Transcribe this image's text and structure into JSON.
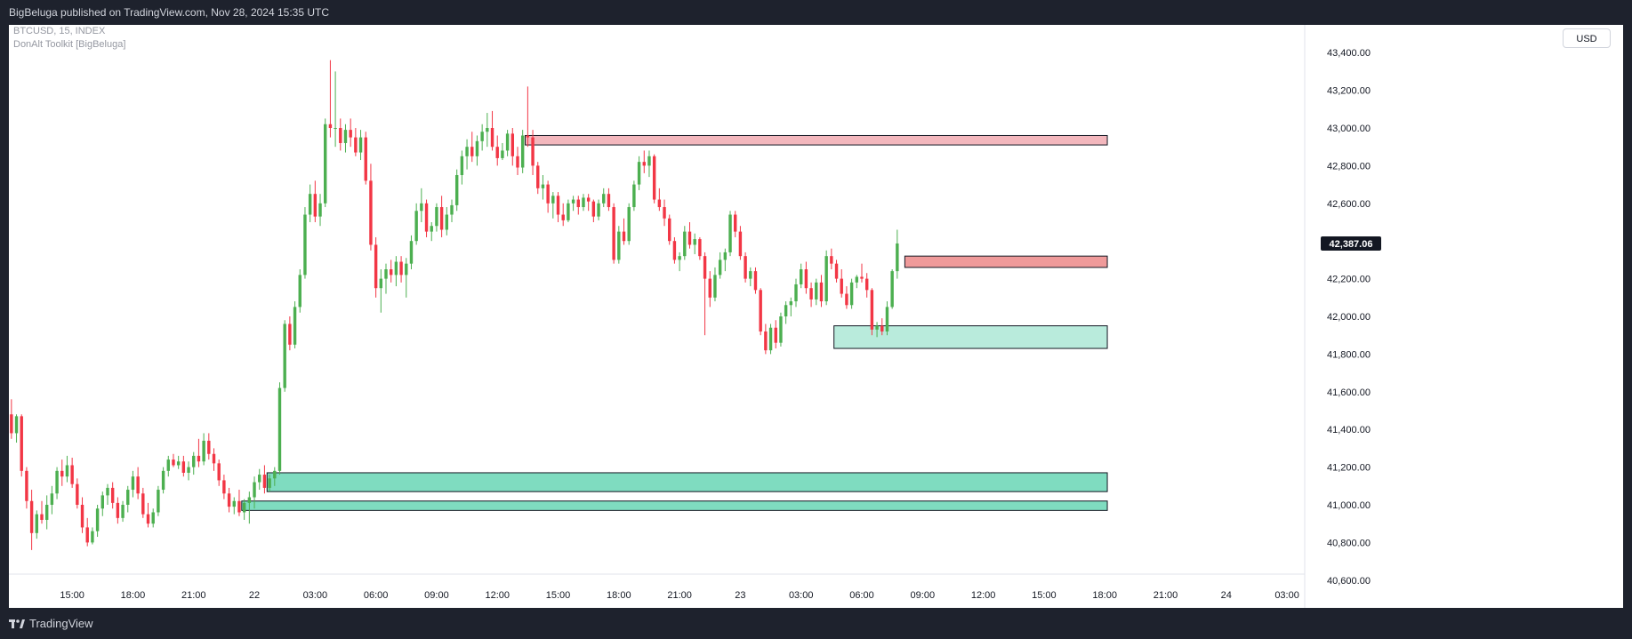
{
  "header": {
    "published_text": "BigBeluga published on TradingView.com, Nov 28, 2024 15:35 UTC"
  },
  "legend": {
    "symbol_line": "BTCUSD, 15, INDEX",
    "indicator_line": "DonAlt Toolkit [BigBeluga]"
  },
  "currency_button": {
    "label": "USD"
  },
  "footer": {
    "brand": "TradingView"
  },
  "colors": {
    "up": "#4caf50",
    "down": "#f23645",
    "supply_fill": "#f3b7bd",
    "supply_fill_strong": "#ef9a9a",
    "demand_fill": "#7fdcc0",
    "demand_fill_light": "#b9ebdc",
    "price_label_bg": "#131722"
  },
  "chart_data": {
    "type": "candlestick",
    "symbol": "BTCUSD",
    "interval": "15",
    "ylim": [
      40500,
      43500
    ],
    "y_ticks": [
      "43,400.00",
      "43,200.00",
      "43,000.00",
      "42,800.00",
      "42,600.00",
      "42,400.00",
      "42,200.00",
      "42,000.00",
      "41,800.00",
      "41,600.00",
      "41,400.00",
      "41,200.00",
      "41,000.00",
      "40,800.00",
      "40,600.00"
    ],
    "y_tick_values": [
      43400,
      43200,
      43000,
      42800,
      42600,
      42400,
      42200,
      42000,
      41800,
      41600,
      41400,
      41200,
      41000,
      40800,
      40600
    ],
    "x_ticks": [
      "15:00",
      "18:00",
      "21:00",
      "22",
      "03:00",
      "06:00",
      "09:00",
      "12:00",
      "15:00",
      "18:00",
      "21:00",
      "23",
      "03:00",
      "06:00",
      "09:00",
      "12:00",
      "15:00",
      "18:00",
      "21:00",
      "24",
      "03:00"
    ],
    "x_tick_bars": [
      12,
      24,
      36,
      48,
      60,
      72,
      84,
      96,
      108,
      120,
      132,
      144,
      156,
      168,
      180,
      192,
      204,
      216,
      228,
      240,
      252
    ],
    "bar_count_visible": 256,
    "last_price": {
      "value": 42387.06,
      "label": "42,387.06"
    },
    "zones": [
      {
        "kind": "supply",
        "top": 42960,
        "bottom": 42910,
        "start_bar": 102,
        "end_bar": 216
      },
      {
        "kind": "supply",
        "top": 42320,
        "bottom": 42260,
        "start_bar": 177,
        "end_bar": 216
      },
      {
        "kind": "demand",
        "top": 41950,
        "bottom": 41830,
        "start_bar": 163,
        "end_bar": 216
      },
      {
        "kind": "demand",
        "top": 41170,
        "bottom": 41070,
        "start_bar": 51,
        "end_bar": 216
      },
      {
        "kind": "demand",
        "top": 41020,
        "bottom": 40970,
        "start_bar": 46,
        "end_bar": 216
      }
    ],
    "ohlc": [
      [
        41480,
        41560,
        41350,
        41380
      ],
      [
        41380,
        41480,
        41330,
        41470
      ],
      [
        41470,
        41480,
        41150,
        41180
      ],
      [
        41180,
        41200,
        40980,
        41020
      ],
      [
        41020,
        41080,
        40760,
        40850
      ],
      [
        40850,
        40970,
        40820,
        40950
      ],
      [
        40950,
        41020,
        40900,
        40920
      ],
      [
        40920,
        41050,
        40870,
        41000
      ],
      [
        41000,
        41100,
        40950,
        41060
      ],
      [
        41060,
        41200,
        41030,
        41180
      ],
      [
        41180,
        41240,
        41100,
        41150
      ],
      [
        41150,
        41260,
        41120,
        41210
      ],
      [
        41210,
        41250,
        41090,
        41110
      ],
      [
        41110,
        41140,
        40980,
        41000
      ],
      [
        41000,
        41040,
        40850,
        40880
      ],
      [
        40880,
        40930,
        40780,
        40800
      ],
      [
        40800,
        40880,
        40790,
        40860
      ],
      [
        40860,
        41000,
        40830,
        40980
      ],
      [
        40980,
        41070,
        40940,
        41050
      ],
      [
        41050,
        41110,
        41000,
        41090
      ],
      [
        41090,
        41120,
        40980,
        41010
      ],
      [
        41010,
        41040,
        40900,
        40930
      ],
      [
        40930,
        41020,
        40910,
        41000
      ],
      [
        41000,
        41100,
        40960,
        41080
      ],
      [
        41080,
        41180,
        41040,
        41150
      ],
      [
        41150,
        41200,
        41030,
        41060
      ],
      [
        41060,
        41090,
        40930,
        40950
      ],
      [
        40950,
        41010,
        40880,
        40900
      ],
      [
        40900,
        40980,
        40880,
        40960
      ],
      [
        40960,
        41100,
        40940,
        41080
      ],
      [
        41080,
        41200,
        41060,
        41180
      ],
      [
        41180,
        41260,
        41150,
        41240
      ],
      [
        41240,
        41270,
        41200,
        41210
      ],
      [
        41210,
        41260,
        41190,
        41230
      ],
      [
        41230,
        41260,
        41150,
        41170
      ],
      [
        41170,
        41230,
        41130,
        41200
      ],
      [
        41200,
        41280,
        41160,
        41260
      ],
      [
        41260,
        41350,
        41200,
        41230
      ],
      [
        41230,
        41380,
        41210,
        41340
      ],
      [
        41340,
        41380,
        41240,
        41270
      ],
      [
        41270,
        41300,
        41180,
        41220
      ],
      [
        41220,
        41240,
        41100,
        41130
      ],
      [
        41130,
        41160,
        41030,
        41060
      ],
      [
        41060,
        41090,
        40960,
        40990
      ],
      [
        40990,
        41040,
        40950,
        41020
      ],
      [
        41020,
        41080,
        40940,
        40960
      ],
      [
        40960,
        41030,
        40920,
        41010
      ],
      [
        41010,
        41070,
        40900,
        41040
      ],
      [
        41040,
        41150,
        40980,
        41120
      ],
      [
        41120,
        41190,
        41080,
        41160
      ],
      [
        41160,
        41210,
        41060,
        41090
      ],
      [
        41090,
        41160,
        41070,
        41140
      ],
      [
        41140,
        41200,
        41100,
        41180
      ],
      [
        41180,
        41650,
        41160,
        41620
      ],
      [
        41620,
        41980,
        41600,
        41960
      ],
      [
        41960,
        42000,
        41820,
        41850
      ],
      [
        41850,
        42080,
        41830,
        42050
      ],
      [
        42050,
        42250,
        42020,
        42220
      ],
      [
        42220,
        42580,
        42200,
        42540
      ],
      [
        42540,
        42700,
        42500,
        42650
      ],
      [
        42650,
        42720,
        42500,
        42530
      ],
      [
        42530,
        42650,
        42480,
        42600
      ],
      [
        42600,
        43050,
        42580,
        43020
      ],
      [
        43020,
        43360,
        42950,
        43000
      ],
      [
        43000,
        43300,
        42900,
        43000
      ],
      [
        43000,
        43050,
        42880,
        42920
      ],
      [
        42920,
        43020,
        42870,
        42990
      ],
      [
        42990,
        43050,
        42900,
        42950
      ],
      [
        42950,
        43000,
        42850,
        42870
      ],
      [
        42870,
        42990,
        42830,
        42950
      ],
      [
        42950,
        42980,
        42700,
        42720
      ],
      [
        42720,
        42810,
        42350,
        42380
      ],
      [
        42380,
        42420,
        42100,
        42150
      ],
      [
        42150,
        42250,
        42020,
        42200
      ],
      [
        42200,
        42280,
        42120,
        42250
      ],
      [
        42250,
        42300,
        42180,
        42220
      ],
      [
        42220,
        42320,
        42160,
        42290
      ],
      [
        42290,
        42320,
        42180,
        42220
      ],
      [
        42220,
        42310,
        42100,
        42280
      ],
      [
        42280,
        42430,
        42250,
        42400
      ],
      [
        42400,
        42600,
        42380,
        42560
      ],
      [
        42560,
        42680,
        42500,
        42600
      ],
      [
        42600,
        42620,
        42420,
        42450
      ],
      [
        42450,
        42500,
        42400,
        42480
      ],
      [
        42480,
        42600,
        42450,
        42580
      ],
      [
        42580,
        42640,
        42420,
        42460
      ],
      [
        42460,
        42580,
        42430,
        42540
      ],
      [
        42540,
        42620,
        42500,
        42590
      ],
      [
        42590,
        42780,
        42560,
        42750
      ],
      [
        42750,
        42880,
        42700,
        42850
      ],
      [
        42850,
        42940,
        42780,
        42900
      ],
      [
        42900,
        42980,
        42820,
        42850
      ],
      [
        42850,
        42960,
        42800,
        42930
      ],
      [
        42930,
        43020,
        42880,
        42980
      ],
      [
        42980,
        43080,
        42900,
        43000
      ],
      [
        43000,
        43090,
        42880,
        42900
      ],
      [
        42900,
        42960,
        42800,
        42840
      ],
      [
        42840,
        42920,
        42830,
        42880
      ],
      [
        42880,
        42990,
        42850,
        42970
      ],
      [
        42970,
        43000,
        42800,
        42850
      ],
      [
        42850,
        42900,
        42750,
        42790
      ],
      [
        42790,
        42990,
        42760,
        42960
      ],
      [
        42960,
        43220,
        42900,
        42950
      ],
      [
        42950,
        42990,
        42750,
        42800
      ],
      [
        42800,
        42820,
        42650,
        42680
      ],
      [
        42680,
        42750,
        42620,
        42700
      ],
      [
        42700,
        42720,
        42550,
        42600
      ],
      [
        42600,
        42660,
        42520,
        42640
      ],
      [
        42640,
        42660,
        42500,
        42540
      ],
      [
        42540,
        42600,
        42480,
        42510
      ],
      [
        42510,
        42620,
        42500,
        42600
      ],
      [
        42600,
        42640,
        42560,
        42620
      ],
      [
        42620,
        42640,
        42540,
        42580
      ],
      [
        42580,
        42650,
        42560,
        42630
      ],
      [
        42630,
        42650,
        42560,
        42610
      ],
      [
        42610,
        42620,
        42500,
        42530
      ],
      [
        42530,
        42620,
        42510,
        42600
      ],
      [
        42600,
        42680,
        42580,
        42650
      ],
      [
        42650,
        42680,
        42560,
        42580
      ],
      [
        42580,
        42600,
        42280,
        42300
      ],
      [
        42300,
        42480,
        42280,
        42450
      ],
      [
        42450,
        42520,
        42380,
        42400
      ],
      [
        42400,
        42600,
        42380,
        42580
      ],
      [
        42580,
        42720,
        42560,
        42700
      ],
      [
        42700,
        42850,
        42670,
        42820
      ],
      [
        42820,
        42880,
        42760,
        42800
      ],
      [
        42800,
        42880,
        42740,
        42850
      ],
      [
        42850,
        42860,
        42600,
        42620
      ],
      [
        42620,
        42680,
        42560,
        42580
      ],
      [
        42580,
        42620,
        42480,
        42520
      ],
      [
        42520,
        42540,
        42380,
        42400
      ],
      [
        42400,
        42420,
        42280,
        42300
      ],
      [
        42300,
        42340,
        42240,
        42320
      ],
      [
        42320,
        42480,
        42300,
        42450
      ],
      [
        42450,
        42500,
        42360,
        42380
      ],
      [
        42380,
        42440,
        42330,
        42410
      ],
      [
        42410,
        42420,
        42300,
        42320
      ],
      [
        42320,
        42340,
        41900,
        42200
      ],
      [
        42200,
        42240,
        42050,
        42100
      ],
      [
        42100,
        42260,
        42080,
        42220
      ],
      [
        42220,
        42340,
        42200,
        42300
      ],
      [
        42300,
        42360,
        42240,
        42340
      ],
      [
        42340,
        42560,
        42320,
        42540
      ],
      [
        42540,
        42560,
        42420,
        42450
      ],
      [
        42450,
        42480,
        42300,
        42320
      ],
      [
        42320,
        42340,
        42180,
        42200
      ],
      [
        42200,
        42260,
        42160,
        42240
      ],
      [
        42240,
        42260,
        42120,
        42140
      ],
      [
        42140,
        42150,
        41900,
        41920
      ],
      [
        41920,
        41960,
        41800,
        41820
      ],
      [
        41820,
        41960,
        41800,
        41940
      ],
      [
        41940,
        41980,
        41830,
        41860
      ],
      [
        41860,
        42020,
        41840,
        42000
      ],
      [
        42000,
        42080,
        41960,
        42060
      ],
      [
        42060,
        42100,
        42000,
        42080
      ],
      [
        42080,
        42200,
        42050,
        42170
      ],
      [
        42170,
        42280,
        42150,
        42250
      ],
      [
        42250,
        42290,
        42120,
        42150
      ],
      [
        42150,
        42180,
        42050,
        42090
      ],
      [
        42090,
        42200,
        42060,
        42180
      ],
      [
        42180,
        42220,
        42050,
        42080
      ],
      [
        42080,
        42350,
        42060,
        42320
      ],
      [
        42320,
        42360,
        42250,
        42280
      ],
      [
        42280,
        42300,
        42180,
        42200
      ],
      [
        42200,
        42250,
        42100,
        42120
      ],
      [
        42120,
        42160,
        42040,
        42060
      ],
      [
        42060,
        42200,
        42040,
        42180
      ],
      [
        42180,
        42220,
        42150,
        42210
      ],
      [
        42210,
        42280,
        42180,
        42200
      ],
      [
        42200,
        42230,
        42100,
        42140
      ],
      [
        42140,
        42150,
        41900,
        41930
      ],
      [
        41930,
        41970,
        41890,
        41950
      ],
      [
        41950,
        41990,
        41900,
        41920
      ],
      [
        41920,
        42080,
        41900,
        42050
      ],
      [
        42050,
        42250,
        42040,
        42240
      ],
      [
        42240,
        42460,
        42200,
        42387.06
      ]
    ]
  }
}
